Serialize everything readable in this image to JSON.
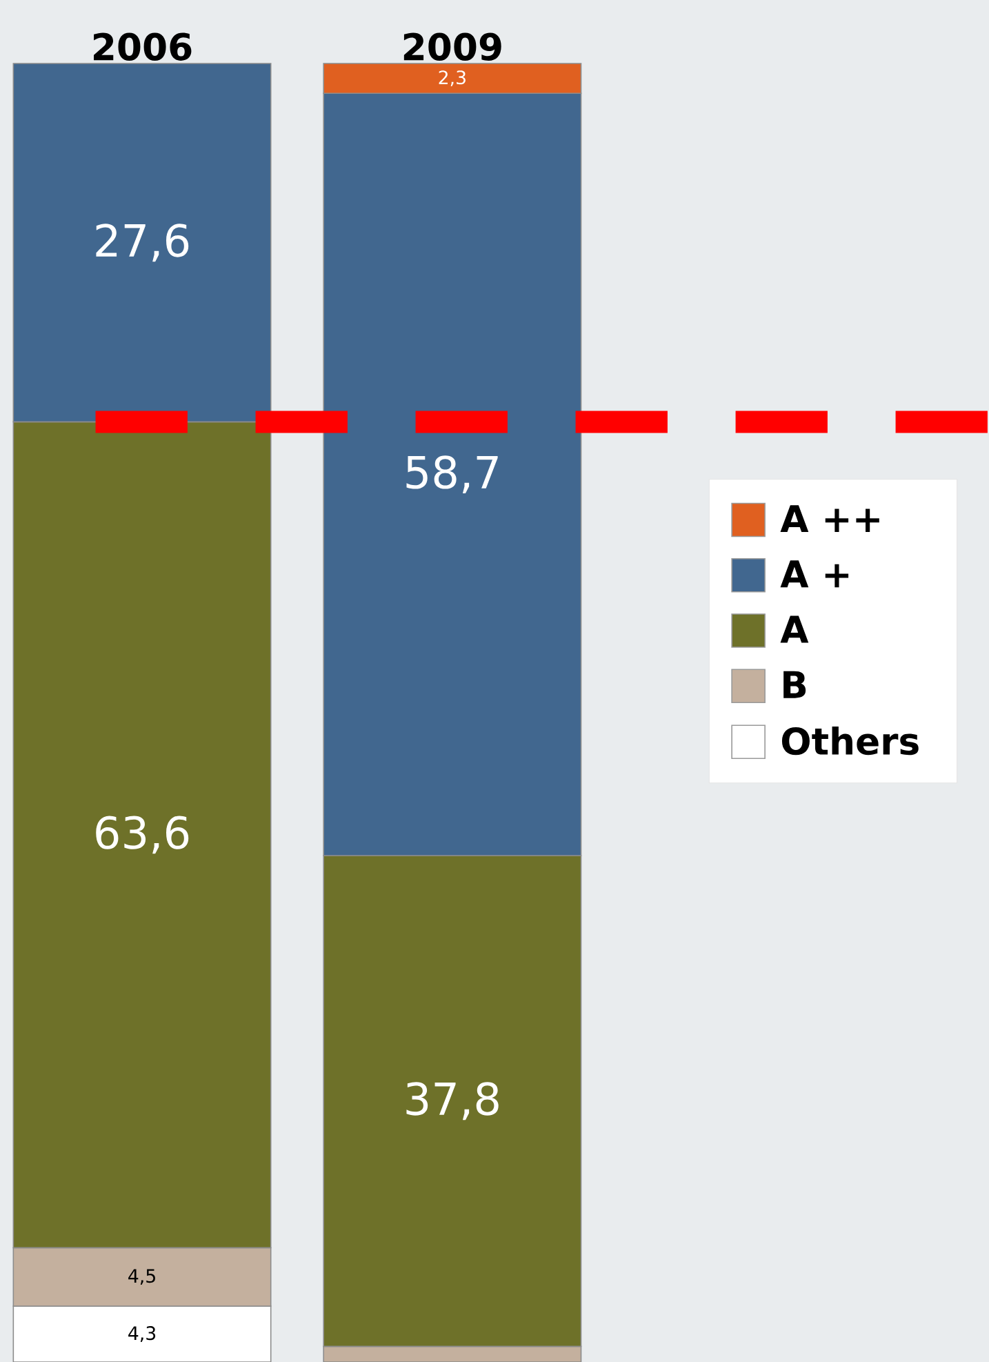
{
  "chart_data": {
    "type": "bar",
    "stacked": true,
    "categories": [
      "2006",
      "2009"
    ],
    "ylim": [
      0,
      100
    ],
    "tick_labels": "x",
    "legend": "right",
    "series": [
      {
        "name": "Others",
        "color": "#ffffff",
        "values": [
          4.3,
          null
        ],
        "value_labels": [
          "4,3",
          null
        ]
      },
      {
        "name": "B",
        "color": "#c4b09e",
        "values": [
          4.5,
          1.2
        ],
        "value_labels": [
          "4,5",
          null
        ]
      },
      {
        "name": "A",
        "color": "#6e7129",
        "values": [
          63.6,
          37.8
        ],
        "value_labels": [
          "63,6",
          "37,8"
        ]
      },
      {
        "name": "A +",
        "color": "#41678f",
        "values": [
          27.6,
          58.7
        ],
        "value_labels": [
          "27,6",
          "58,7"
        ]
      },
      {
        "name": "A ++",
        "color": "#e06020",
        "values": [
          null,
          2.3
        ],
        "value_labels": [
          null,
          "2,3"
        ]
      }
    ],
    "ref_lines": [
      {
        "axis": "y",
        "value": 72.4,
        "color": "#ff0000",
        "line_style": "dashed"
      }
    ]
  }
}
